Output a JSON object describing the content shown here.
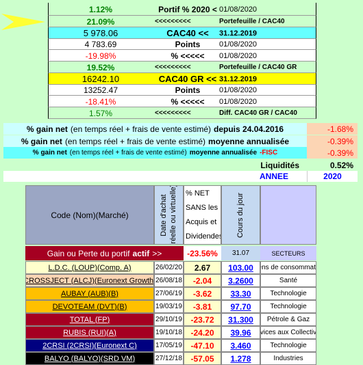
{
  "summary_rows": [
    {
      "value": "1.12%",
      "label": "Portif % 2020 <",
      "date": "01/08/2020"
    },
    {
      "value": "21.09%",
      "label": "<<<<<<<<<",
      "date": "Portefeuille / CAC40"
    },
    {
      "value": "5 978.06",
      "label": "CAC40 <<",
      "date": "31.12.2019"
    },
    {
      "value": "4 783.69",
      "label": "Points",
      "date": "01/08/2020"
    },
    {
      "value": "-19.98%",
      "label": "% <<<<<",
      "date": "01/08/2020"
    },
    {
      "value": "19.52%",
      "label": "<<<<<<<<<",
      "date": "Portefeuille / CAC40 GR"
    },
    {
      "value": "16242.10",
      "label": "CAC40 GR <<",
      "date": "31.12.2019"
    },
    {
      "value": "13252.47",
      "label": "Points",
      "date": "01/08/2020"
    },
    {
      "value": "-18.41%",
      "label": "% <<<<<",
      "date": "01/08/2020"
    },
    {
      "value": "1.57%",
      "label": "<<<<<<<<<",
      "date": "Diff. CAC40 GR / CAC40"
    }
  ],
  "gain_rows": [
    {
      "parts": [
        "% gain net",
        "(en temps réel + frais de vente estimé)",
        "depuis 24.04.2016"
      ],
      "value": "-1.68%"
    },
    {
      "parts": [
        "% gain net",
        "(en temps réel + frais de vente estimé)",
        "moyenne annualisée"
      ],
      "value": "-0.39%"
    },
    {
      "parts": [
        "% gain net",
        "(en temps réel + frais de vente estimé)",
        "moyenne annualisée",
        "-FISC"
      ],
      "value": "-0.39%"
    }
  ],
  "liquidites": {
    "label": "Liquidités",
    "value": "0.52%"
  },
  "annee": {
    "label": "ANNEE",
    "value": "2020"
  },
  "table": {
    "headers": {
      "code": "Code (Nom)(Marché)",
      "date": [
        "Date d'achat",
        "(réelle ou virtuelle)"
      ],
      "net": [
        "% NET",
        "SANS les",
        "Acquis et",
        "Dividendes"
      ],
      "cours": "Cours du jour"
    },
    "total_row": {
      "label": [
        "Gain ou Perte du portif",
        "actif",
        ">>"
      ],
      "net": "-23.56%",
      "cours": "31.07",
      "sector": "SECTEURS"
    },
    "rows": [
      [
        "L.D.C. (LOUP)(Comp. A)",
        "26/02/20",
        "2.67",
        "103.00",
        "Biens de consommation"
      ],
      [
        "CROSSJECT (ALCJ)(Euronext Growth)",
        "26/08/18",
        "-2.04",
        "3.2600",
        "Santé"
      ],
      [
        "AUBAY (AUB)(B)",
        "27/06/19",
        "-3.62",
        "33.30",
        "Technologie"
      ],
      [
        "DEVOTEAM (DVT)(B)",
        "19/03/19",
        "-3.81",
        "97.70",
        "Technologie"
      ],
      [
        "TOTAL (FP)",
        "29/10/19",
        "-23.72",
        "31.300",
        "Pétrole & Gaz"
      ],
      [
        "RUBIS (RUI)(A)",
        "19/10/18",
        "-24.20",
        "39.96",
        "Services aux Collectivités"
      ],
      [
        "2CRSI (2CRSI)(Euronext C)",
        "17/05/19",
        "-47.10",
        "3.460",
        "Technologie"
      ],
      [
        "BALYO (BALYO)(SRD VM)",
        "27/12/18",
        "-57.05",
        "1.278",
        "Industries"
      ]
    ]
  }
}
